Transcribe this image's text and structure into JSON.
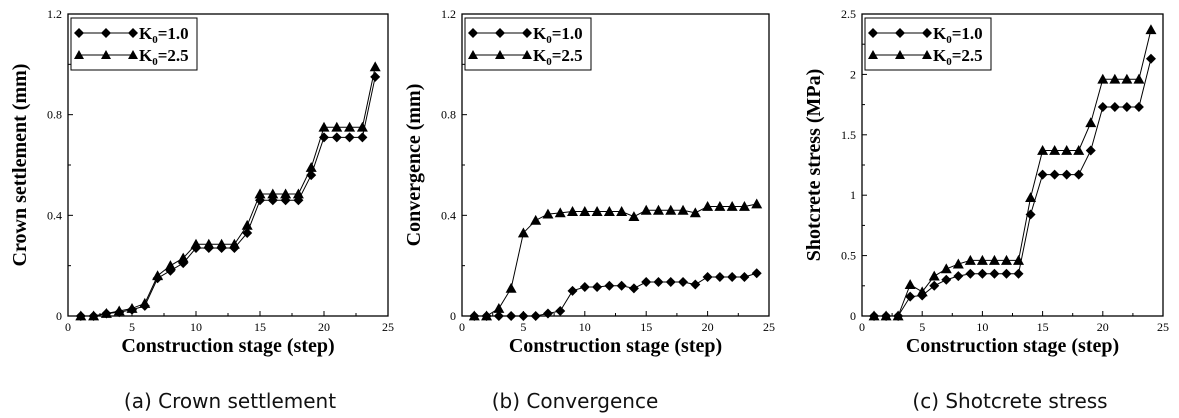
{
  "chart_data": [
    {
      "type": "line",
      "caption": "(a) Crown settlement",
      "xlabel": "Construction stage (step)",
      "ylabel": "Crown settlement (mm)",
      "xlim": [
        0,
        25
      ],
      "ylim": [
        0,
        1.2
      ],
      "xticks": [
        "0",
        "5",
        "10",
        "15",
        "20",
        "25"
      ],
      "yticks": [
        "0",
        "0.4",
        "0.8",
        "1.2"
      ],
      "grid": false,
      "legend_position": "top-left",
      "x": [
        1,
        2,
        3,
        4,
        5,
        6,
        7,
        8,
        9,
        10,
        11,
        12,
        13,
        14,
        15,
        16,
        17,
        18,
        19,
        20,
        21,
        22,
        23,
        24
      ],
      "series": [
        {
          "name": "K0=1.0",
          "marker": "diamond",
          "values": [
            0,
            0,
            0.01,
            0.015,
            0.025,
            0.04,
            0.15,
            0.18,
            0.21,
            0.27,
            0.27,
            0.27,
            0.27,
            0.33,
            0.46,
            0.46,
            0.46,
            0.46,
            0.56,
            0.71,
            0.71,
            0.71,
            0.71,
            0.95
          ]
        },
        {
          "name": "K0=2.5",
          "marker": "triangle",
          "values": [
            0,
            0,
            0.01,
            0.02,
            0.03,
            0.05,
            0.16,
            0.2,
            0.23,
            0.285,
            0.285,
            0.285,
            0.285,
            0.36,
            0.485,
            0.485,
            0.485,
            0.485,
            0.59,
            0.75,
            0.75,
            0.75,
            0.75,
            0.99
          ]
        }
      ]
    },
    {
      "type": "line",
      "caption": "(b) Convergence",
      "xlabel": "Construction stage (step)",
      "ylabel": "Convergence (mm)",
      "xlim": [
        0,
        25
      ],
      "ylim": [
        0,
        1.2
      ],
      "xticks": [
        "0",
        "5",
        "10",
        "15",
        "20",
        "25"
      ],
      "yticks": [
        "0",
        "0.4",
        "0.8",
        "1.2"
      ],
      "grid": false,
      "legend_position": "top-left",
      "x": [
        1,
        2,
        3,
        4,
        5,
        6,
        7,
        8,
        9,
        10,
        11,
        12,
        13,
        14,
        15,
        16,
        17,
        18,
        19,
        20,
        21,
        22,
        23,
        24
      ],
      "series": [
        {
          "name": "K0=1.0",
          "marker": "diamond",
          "values": [
            0,
            0,
            0,
            0,
            0,
            0,
            0.01,
            0.02,
            0.1,
            0.115,
            0.115,
            0.12,
            0.12,
            0.11,
            0.135,
            0.135,
            0.135,
            0.135,
            0.125,
            0.155,
            0.155,
            0.155,
            0.155,
            0.17
          ]
        },
        {
          "name": "K0=2.5",
          "marker": "triangle",
          "values": [
            0,
            0,
            0.03,
            0.11,
            0.33,
            0.38,
            0.405,
            0.41,
            0.415,
            0.415,
            0.415,
            0.415,
            0.415,
            0.395,
            0.42,
            0.42,
            0.42,
            0.42,
            0.41,
            0.435,
            0.435,
            0.435,
            0.435,
            0.445
          ]
        }
      ]
    },
    {
      "type": "line",
      "caption": "(c) Shotcrete stress",
      "xlabel": "Construction stage (step)",
      "ylabel": "Shotcrete stress (MPa)",
      "xlim": [
        0,
        25
      ],
      "ylim": [
        0,
        2.5
      ],
      "xticks": [
        "0",
        "5",
        "10",
        "15",
        "20",
        "25"
      ],
      "yticks": [
        "0",
        "0.5",
        "1",
        "1.5",
        "2",
        "2.5"
      ],
      "grid": false,
      "legend_position": "top-left",
      "x": [
        1,
        2,
        3,
        4,
        5,
        6,
        7,
        8,
        9,
        10,
        11,
        12,
        13,
        14,
        15,
        16,
        17,
        18,
        19,
        20,
        21,
        22,
        23,
        24
      ],
      "series": [
        {
          "name": "K0=1.0",
          "marker": "diamond",
          "values": [
            0,
            0,
            0,
            0.16,
            0.17,
            0.25,
            0.3,
            0.33,
            0.35,
            0.35,
            0.35,
            0.35,
            0.35,
            0.84,
            1.17,
            1.17,
            1.17,
            1.17,
            1.37,
            1.73,
            1.73,
            1.73,
            1.73,
            2.13
          ]
        },
        {
          "name": "K0=2.5",
          "marker": "triangle",
          "values": [
            0,
            0,
            0,
            0.26,
            0.2,
            0.33,
            0.39,
            0.43,
            0.46,
            0.46,
            0.46,
            0.46,
            0.46,
            0.98,
            1.37,
            1.37,
            1.37,
            1.37,
            1.6,
            1.96,
            1.96,
            1.96,
            1.96,
            2.37
          ]
        }
      ]
    }
  ]
}
